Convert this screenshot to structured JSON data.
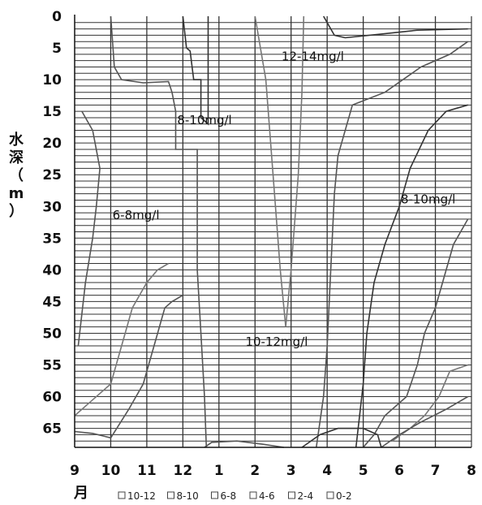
{
  "chart_data": {
    "type": "contour",
    "x_ticks": [
      "9",
      "10",
      "11",
      "12",
      "1",
      "2",
      "3",
      "4",
      "5",
      "6",
      "7",
      "8"
    ],
    "y_ticks": [
      "0",
      "5",
      "10",
      "15",
      "20",
      "25",
      "30",
      "35",
      "40",
      "45",
      "50",
      "55",
      "60",
      "65"
    ],
    "ylabel_chars": [
      "水",
      "深",
      "（",
      "m",
      "）"
    ],
    "xlabel": "月",
    "ylim": [
      0,
      68
    ],
    "grid": true,
    "annotations": [
      {
        "text": "12-14mg/l",
        "x": 6.6,
        "y": 7
      },
      {
        "text": "8-10mg/l",
        "x": 3.6,
        "y": 17
      },
      {
        "text": "6-8mg/l",
        "x": 1.7,
        "y": 32
      },
      {
        "text": "8-10mg/l",
        "x": 9.8,
        "y": 29.5
      },
      {
        "text": "10-12mg/l",
        "x": 5.6,
        "y": 52
      }
    ],
    "legend": {
      "placement": "bottom",
      "entries": [
        {
          "label": "10-12",
          "color": "#ffffff"
        },
        {
          "label": "8-10",
          "color": "#ffffff"
        },
        {
          "label": "6-8",
          "color": "#ffffff"
        },
        {
          "label": "4-6",
          "color": "#ffffff"
        },
        {
          "label": "2-4",
          "color": "#ffffff"
        },
        {
          "label": "0-2",
          "color": "#ffffff"
        }
      ]
    },
    "contours": [
      {
        "name": "c1",
        "color": "#555555",
        "points": [
          [
            1.0,
            0
          ],
          [
            1.1,
            8
          ],
          [
            1.3,
            10
          ],
          [
            1.9,
            10.5
          ],
          [
            2.6,
            10.3
          ],
          [
            2.7,
            12
          ],
          [
            2.8,
            15
          ],
          [
            2.8,
            18
          ],
          [
            2.8,
            21
          ],
          [
            3.4,
            21
          ],
          [
            3.4,
            40
          ],
          [
            3.5,
            50
          ],
          [
            3.6,
            60
          ],
          [
            3.65,
            68
          ]
        ]
      },
      {
        "name": "c2",
        "color": "#333333",
        "points": [
          [
            3.0,
            0
          ],
          [
            3.1,
            5
          ],
          [
            3.2,
            5.5
          ],
          [
            3.3,
            10
          ],
          [
            3.5,
            10
          ],
          [
            3.5,
            16
          ],
          [
            3.7,
            17
          ],
          [
            3.7,
            0
          ]
        ]
      },
      {
        "name": "c3",
        "color": "#555555",
        "points": [
          [
            0.2,
            15
          ],
          [
            0.5,
            18
          ],
          [
            0.7,
            24
          ],
          [
            0.6,
            30
          ],
          [
            0.5,
            35
          ],
          [
            0.3,
            42
          ],
          [
            0.1,
            52
          ]
        ]
      },
      {
        "name": "c4",
        "color": "#777777",
        "points": [
          [
            5.0,
            0
          ],
          [
            5.3,
            10
          ],
          [
            5.5,
            25
          ],
          [
            5.7,
            40
          ],
          [
            5.85,
            49
          ],
          [
            6.0,
            40
          ],
          [
            6.2,
            25
          ],
          [
            6.3,
            12
          ],
          [
            6.35,
            0
          ]
        ]
      },
      {
        "name": "c5",
        "color": "#333333",
        "points": [
          [
            6.9,
            0
          ],
          [
            7.2,
            3
          ],
          [
            7.5,
            3.4
          ],
          [
            8.5,
            2.8
          ],
          [
            9.5,
            2.2
          ],
          [
            10.9,
            2
          ]
        ]
      },
      {
        "name": "c6",
        "color": "#555555",
        "points": [
          [
            10.9,
            4
          ],
          [
            10.4,
            6
          ],
          [
            9.6,
            8
          ],
          [
            8.6,
            12
          ],
          [
            7.7,
            14
          ],
          [
            7.3,
            22
          ],
          [
            7.2,
            28
          ],
          [
            7.1,
            40
          ],
          [
            7.0,
            52
          ],
          [
            6.9,
            60
          ],
          [
            6.7,
            68
          ]
        ]
      },
      {
        "name": "c7",
        "color": "#333333",
        "points": [
          [
            10.9,
            14
          ],
          [
            10.3,
            15
          ],
          [
            9.8,
            18
          ],
          [
            9.3,
            24
          ],
          [
            9.0,
            30
          ],
          [
            8.6,
            36
          ],
          [
            8.3,
            42
          ],
          [
            8.1,
            50
          ],
          [
            8.0,
            58
          ],
          [
            7.8,
            68
          ]
        ]
      },
      {
        "name": "c8",
        "color": "#555555",
        "points": [
          [
            10.9,
            32
          ],
          [
            10.5,
            36
          ],
          [
            10.2,
            42
          ],
          [
            10.0,
            46
          ],
          [
            9.7,
            50
          ],
          [
            9.5,
            55
          ],
          [
            9.2,
            60
          ],
          [
            8.6,
            63
          ],
          [
            8.3,
            66
          ],
          [
            8.0,
            68
          ]
        ]
      },
      {
        "name": "c9",
        "color": "#777777",
        "points": [
          [
            10.9,
            55
          ],
          [
            10.4,
            56
          ],
          [
            10.1,
            60
          ],
          [
            9.7,
            63
          ],
          [
            9.3,
            65
          ],
          [
            8.8,
            67
          ]
        ]
      },
      {
        "name": "c10",
        "color": "#555555",
        "points": [
          [
            10.9,
            60
          ],
          [
            10.3,
            62
          ],
          [
            9.6,
            64
          ],
          [
            9.0,
            66
          ],
          [
            8.5,
            68
          ]
        ]
      },
      {
        "name": "c11",
        "color": "#777777",
        "points": [
          [
            0,
            63
          ],
          [
            0.4,
            61
          ],
          [
            0.8,
            59
          ],
          [
            1.0,
            58
          ],
          [
            1.3,
            52
          ],
          [
            1.6,
            46
          ],
          [
            2.0,
            42
          ],
          [
            2.3,
            40
          ],
          [
            2.6,
            39
          ]
        ]
      },
      {
        "name": "c12",
        "color": "#555555",
        "points": [
          [
            0,
            65.5
          ],
          [
            0.5,
            65.8
          ],
          [
            1.0,
            66.5
          ],
          [
            1.5,
            62
          ],
          [
            1.9,
            58
          ],
          [
            2.2,
            52
          ],
          [
            2.5,
            46
          ],
          [
            2.7,
            45
          ],
          [
            3.0,
            44
          ]
        ]
      },
      {
        "name": "c13",
        "color": "#333333",
        "points": [
          [
            6.3,
            68
          ],
          [
            6.8,
            66
          ],
          [
            7.3,
            65
          ],
          [
            8.0,
            65
          ],
          [
            8.4,
            66
          ],
          [
            8.5,
            68
          ]
        ]
      },
      {
        "name": "c14",
        "color": "#555555",
        "points": [
          [
            3.6,
            68
          ],
          [
            3.8,
            67.2
          ],
          [
            4.5,
            67
          ],
          [
            5.2,
            67.5
          ],
          [
            5.8,
            68
          ]
        ]
      }
    ]
  }
}
